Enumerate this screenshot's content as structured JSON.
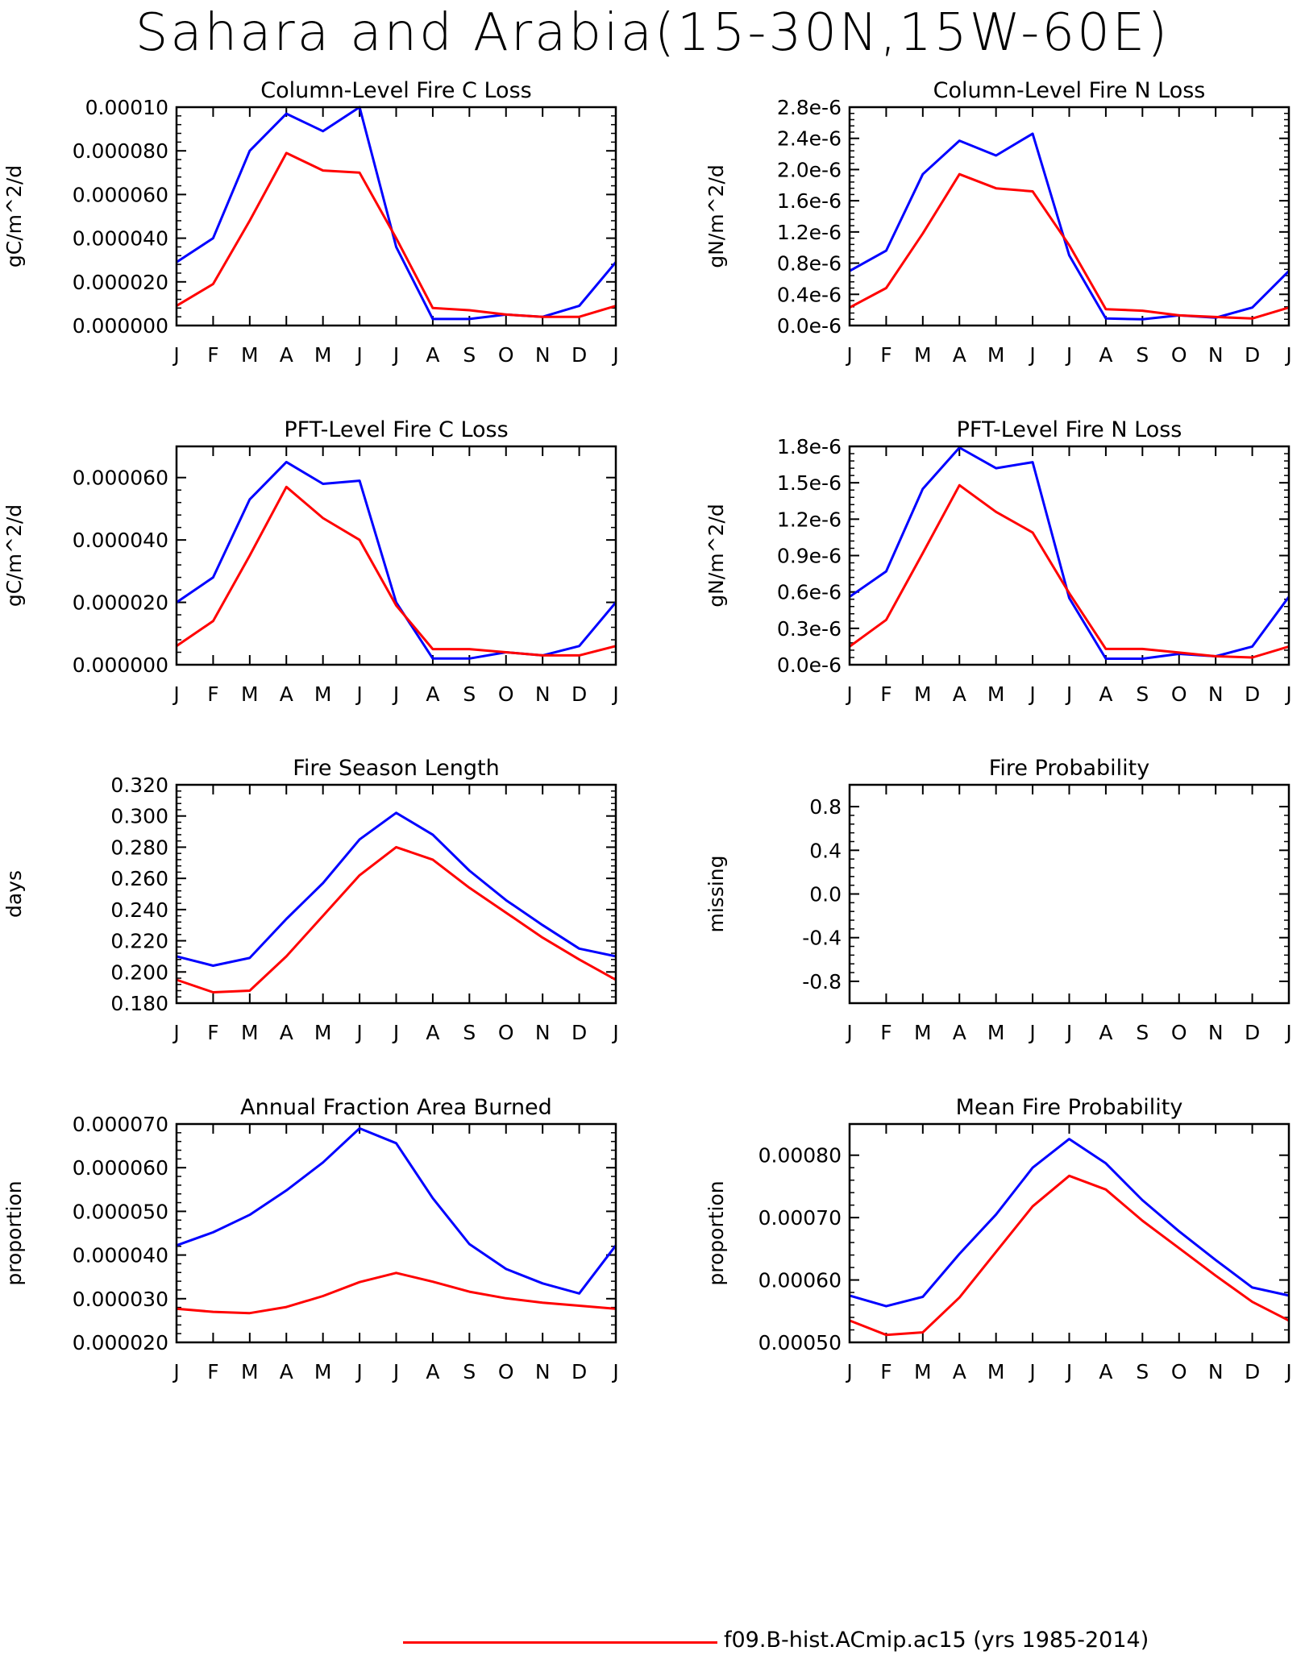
{
  "title": "Sahara and Arabia(15-30N,15W-60E)",
  "legend": {
    "label": "f09.B-hist.ACmip.ac15 (yrs 1985-2014)",
    "color": "#ff0000"
  },
  "chart_data": [
    {
      "type": "line",
      "title": "Column-Level Fire C Loss",
      "ylabel": "gC/m^2/d",
      "categories": [
        "J",
        "F",
        "M",
        "A",
        "M",
        "J",
        "J",
        "A",
        "S",
        "O",
        "N",
        "D",
        "J"
      ],
      "yticks": [
        "0.000000",
        "0.000020",
        "0.000040",
        "0.000060",
        "0.000080",
        "0.00010"
      ],
      "ylim": [
        0,
        0.0001
      ],
      "series": [
        {
          "color": "#0000ff",
          "values": [
            2.9e-05,
            4e-05,
            8e-05,
            9.7e-05,
            8.9e-05,
            0.0001,
            3.6e-05,
            3e-06,
            3e-06,
            5e-06,
            4e-06,
            9e-06,
            2.9e-05
          ]
        },
        {
          "color": "#ff0000",
          "values": [
            9e-06,
            1.9e-05,
            4.8e-05,
            7.9e-05,
            7.1e-05,
            7e-05,
            4e-05,
            8e-06,
            7e-06,
            5e-06,
            4e-06,
            4e-06,
            9e-06
          ]
        }
      ]
    },
    {
      "type": "line",
      "title": "Column-Level Fire N Loss",
      "ylabel": "gN/m^2/d",
      "categories": [
        "J",
        "F",
        "M",
        "A",
        "M",
        "J",
        "J",
        "A",
        "S",
        "O",
        "N",
        "D",
        "J"
      ],
      "yticks": [
        "0.0e-6",
        "0.4e-6",
        "0.8e-6",
        "1.2e-6",
        "1.6e-6",
        "2.0e-6",
        "2.4e-6",
        "2.8e-6"
      ],
      "ylim": [
        0,
        2.8e-06
      ],
      "series": [
        {
          "color": "#0000ff",
          "values": [
            7e-07,
            9.6e-07,
            1.94e-06,
            2.37e-06,
            2.18e-06,
            2.46e-06,
            9e-07,
            9e-08,
            8e-08,
            1.3e-07,
            1e-07,
            2.3e-07,
            7e-07
          ]
        },
        {
          "color": "#ff0000",
          "values": [
            2.3e-07,
            4.8e-07,
            1.18e-06,
            1.94e-06,
            1.76e-06,
            1.72e-06,
            1.03e-06,
            2.1e-07,
            1.9e-07,
            1.3e-07,
            1.1e-07,
            9e-08,
            2.3e-07
          ]
        }
      ]
    },
    {
      "type": "line",
      "title": "PFT-Level Fire C Loss",
      "ylabel": "gC/m^2/d",
      "categories": [
        "J",
        "F",
        "M",
        "A",
        "M",
        "J",
        "J",
        "A",
        "S",
        "O",
        "N",
        "D",
        "J"
      ],
      "yticks": [
        "0.000000",
        "0.000020",
        "0.000040",
        "0.000060"
      ],
      "ylim": [
        0,
        7e-05
      ],
      "series": [
        {
          "color": "#0000ff",
          "values": [
            2e-05,
            2.8e-05,
            5.3e-05,
            6.5e-05,
            5.8e-05,
            5.9e-05,
            2e-05,
            2e-06,
            2e-06,
            4e-06,
            3e-06,
            6e-06,
            2e-05
          ]
        },
        {
          "color": "#ff0000",
          "values": [
            6e-06,
            1.4e-05,
            3.5e-05,
            5.7e-05,
            4.7e-05,
            4e-05,
            1.9e-05,
            5e-06,
            5e-06,
            4e-06,
            3e-06,
            3e-06,
            6e-06
          ]
        }
      ]
    },
    {
      "type": "line",
      "title": "PFT-Level Fire N Loss",
      "ylabel": "gN/m^2/d",
      "categories": [
        "J",
        "F",
        "M",
        "A",
        "M",
        "J",
        "J",
        "A",
        "S",
        "O",
        "N",
        "D",
        "J"
      ],
      "yticks": [
        "0.0e-6",
        "0.3e-6",
        "0.6e-6",
        "0.9e-6",
        "1.2e-6",
        "1.5e-6",
        "1.8e-6"
      ],
      "ylim": [
        0,
        1.8e-06
      ],
      "series": [
        {
          "color": "#0000ff",
          "values": [
            5.6e-07,
            7.7e-07,
            1.45e-06,
            1.79e-06,
            1.62e-06,
            1.67e-06,
            5.5e-07,
            5e-08,
            5e-08,
            9e-08,
            7e-08,
            1.5e-07,
            5.6e-07
          ]
        },
        {
          "color": "#ff0000",
          "values": [
            1.5e-07,
            3.7e-07,
            9.2e-07,
            1.48e-06,
            1.26e-06,
            1.09e-06,
            5.9e-07,
            1.3e-07,
            1.3e-07,
            1e-07,
            7e-08,
            6e-08,
            1.5e-07
          ]
        }
      ]
    },
    {
      "type": "line",
      "title": "Fire Season Length",
      "ylabel": "days",
      "categories": [
        "J",
        "F",
        "M",
        "A",
        "M",
        "J",
        "J",
        "A",
        "S",
        "O",
        "N",
        "D",
        "J"
      ],
      "yticks": [
        "0.180",
        "0.200",
        "0.220",
        "0.240",
        "0.260",
        "0.280",
        "0.300",
        "0.320"
      ],
      "ylim": [
        0.18,
        0.32
      ],
      "series": [
        {
          "color": "#0000ff",
          "values": [
            0.21,
            0.204,
            0.209,
            0.234,
            0.257,
            0.285,
            0.302,
            0.288,
            0.265,
            0.246,
            0.23,
            0.215,
            0.21
          ]
        },
        {
          "color": "#ff0000",
          "values": [
            0.195,
            0.187,
            0.188,
            0.21,
            0.236,
            0.262,
            0.28,
            0.272,
            0.254,
            0.238,
            0.222,
            0.208,
            0.195
          ]
        }
      ]
    },
    {
      "type": "line",
      "title": "Fire Probability",
      "ylabel": "missing",
      "categories": [
        "J",
        "F",
        "M",
        "A",
        "M",
        "J",
        "J",
        "A",
        "S",
        "O",
        "N",
        "D",
        "J"
      ],
      "yticks": [
        "-0.8",
        "-0.4",
        "0.0",
        "0.4",
        "0.8"
      ],
      "ylim": [
        -1,
        1
      ],
      "series": []
    },
    {
      "type": "line",
      "title": "Annual Fraction Area Burned",
      "ylabel": "proportion",
      "categories": [
        "J",
        "F",
        "M",
        "A",
        "M",
        "J",
        "J",
        "A",
        "S",
        "O",
        "N",
        "D",
        "J"
      ],
      "yticks": [
        "0.000020",
        "0.000030",
        "0.000040",
        "0.000050",
        "0.000060",
        "0.000070"
      ],
      "ylim": [
        2e-05,
        7e-05
      ],
      "series": [
        {
          "color": "#0000ff",
          "values": [
            4.22e-05,
            4.52e-05,
            4.92e-05,
            5.48e-05,
            6.12e-05,
            6.9e-05,
            6.56e-05,
            5.3e-05,
            4.25e-05,
            3.68e-05,
            3.35e-05,
            3.12e-05,
            4.22e-05
          ]
        },
        {
          "color": "#ff0000",
          "values": [
            2.77e-05,
            2.7e-05,
            2.67e-05,
            2.81e-05,
            3.06e-05,
            3.38e-05,
            3.59e-05,
            3.39e-05,
            3.16e-05,
            3.01e-05,
            2.91e-05,
            2.84e-05,
            2.77e-05
          ]
        }
      ]
    },
    {
      "type": "line",
      "title": "Mean Fire Probability",
      "ylabel": "proportion",
      "categories": [
        "J",
        "F",
        "M",
        "A",
        "M",
        "J",
        "J",
        "A",
        "S",
        "O",
        "N",
        "D",
        "J"
      ],
      "yticks": [
        "0.00050",
        "0.00060",
        "0.00070",
        "0.00080"
      ],
      "ylim": [
        0.0005,
        0.00085
      ],
      "series": [
        {
          "color": "#0000ff",
          "values": [
            0.000575,
            0.000558,
            0.000573,
            0.000642,
            0.000705,
            0.00078,
            0.000826,
            0.000787,
            0.000728,
            0.000678,
            0.000632,
            0.000588,
            0.000575
          ]
        },
        {
          "color": "#ff0000",
          "values": [
            0.000535,
            0.000512,
            0.000516,
            0.000572,
            0.000645,
            0.000718,
            0.000767,
            0.000745,
            0.000695,
            0.000651,
            0.000607,
            0.000565,
            0.000535
          ]
        }
      ]
    }
  ]
}
